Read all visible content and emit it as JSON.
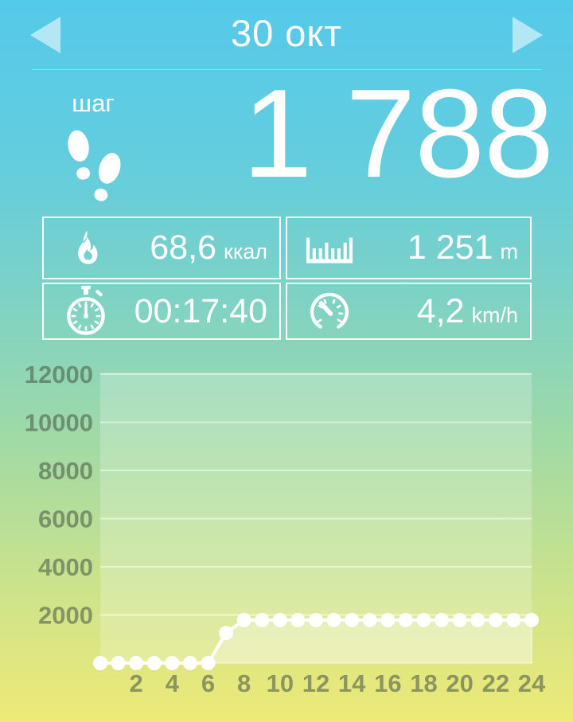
{
  "header": {
    "title": "30 окт",
    "prev_icon": "chevron-left-icon",
    "next_icon": "chevron-right-icon"
  },
  "steps": {
    "label": "шаг",
    "value": "1 788",
    "icon": "footprints-icon"
  },
  "stats": {
    "calories": {
      "icon": "flame-icon",
      "value": "68,6",
      "unit": "ккал"
    },
    "distance": {
      "icon": "ruler-icon",
      "value": "1 251",
      "unit": "m"
    },
    "duration": {
      "icon": "stopwatch-icon",
      "value": "00:17:40",
      "unit": ""
    },
    "speed": {
      "icon": "speedometer-icon",
      "value": "4,2",
      "unit": "km/h"
    }
  },
  "colors": {
    "bg_top": "#55c9ea",
    "bg_bottom": "#eeea77",
    "foreground": "#ffffff"
  },
  "chart_data": {
    "type": "line",
    "x": [
      0,
      1,
      2,
      3,
      4,
      5,
      6,
      7,
      8,
      9,
      10,
      11,
      12,
      13,
      14,
      15,
      16,
      17,
      18,
      19,
      20,
      21,
      22,
      23,
      24
    ],
    "values": [
      0,
      0,
      0,
      0,
      0,
      0,
      0,
      1250,
      1788,
      1788,
      1788,
      1788,
      1788,
      1788,
      1788,
      1788,
      1788,
      1788,
      1788,
      1788,
      1788,
      1788,
      1788,
      1788,
      1788
    ],
    "xlabel": "",
    "ylabel": "",
    "xlim": [
      0,
      24
    ],
    "ylim": [
      0,
      12000
    ],
    "xticks": [
      2,
      4,
      6,
      8,
      10,
      12,
      14,
      16,
      18,
      20,
      22,
      24
    ],
    "yticks": [
      2000,
      4000,
      6000,
      8000,
      10000,
      12000
    ],
    "grid": true,
    "legend": false,
    "line_color": "#ffffff",
    "dot_color": "#ffffff",
    "label_color": "rgba(75,90,72,0.58)",
    "plot_bg": "rgba(255,255,255,0.22)",
    "area_fill": "rgba(255,255,255,0.28)",
    "grid_color": "rgba(255,255,255,0.5)"
  }
}
